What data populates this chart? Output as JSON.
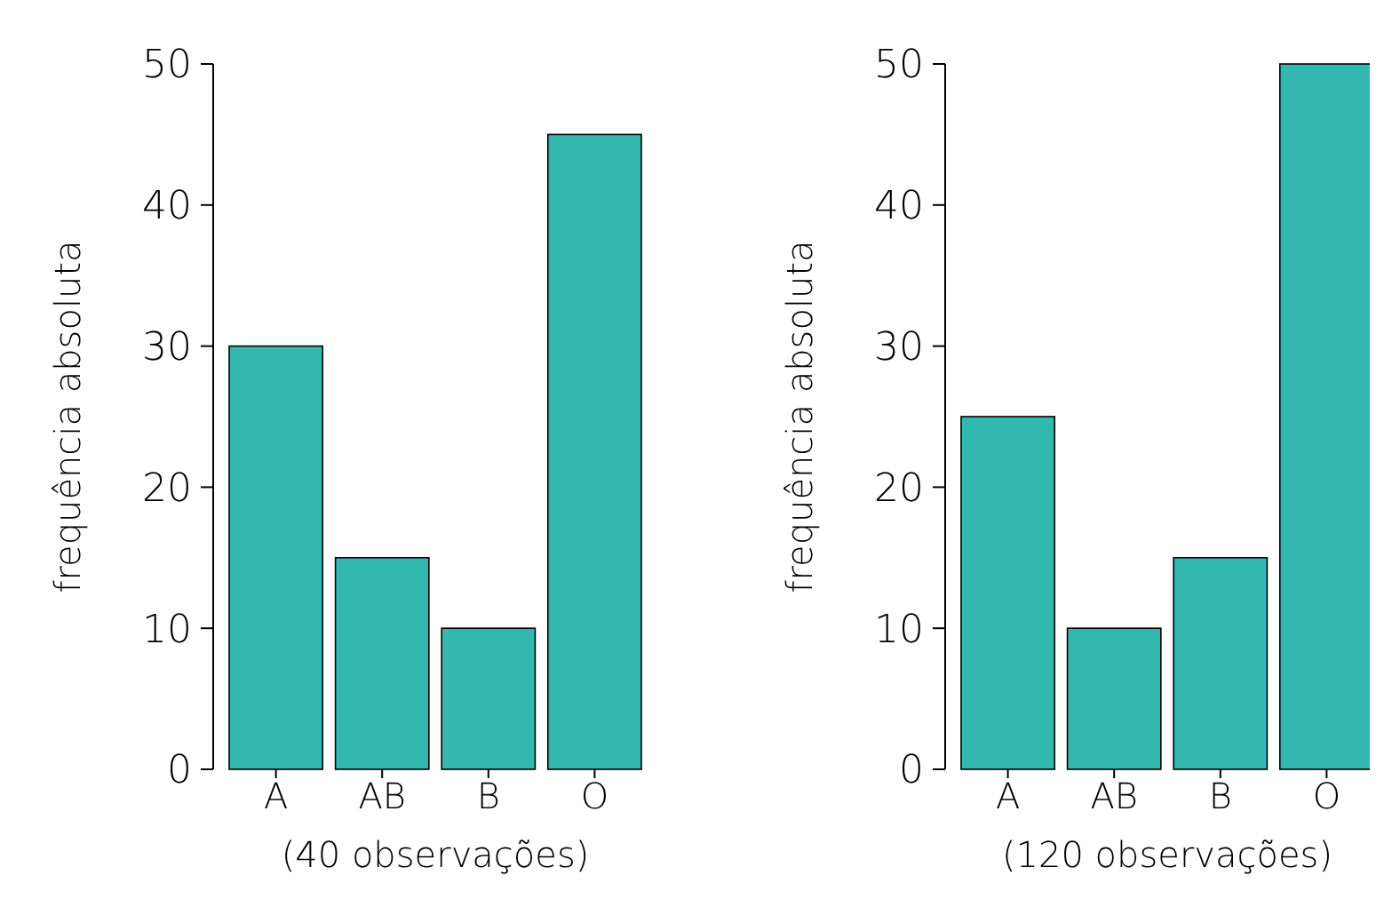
{
  "chart_data": [
    {
      "type": "bar",
      "xlabel": "(40 observações)",
      "ylabel": "frequência absoluta",
      "categories": [
        "A",
        "AB",
        "B",
        "O"
      ],
      "values": [
        30,
        15,
        10,
        45
      ],
      "color": "#33b8b0",
      "ylim": [
        0,
        50
      ],
      "yticks": [
        0,
        10,
        20,
        30,
        40,
        50
      ],
      "grid": false
    },
    {
      "type": "bar",
      "xlabel": "(120 observações)",
      "ylabel": "frequência absoluta",
      "categories": [
        "A",
        "AB",
        "B",
        "O"
      ],
      "values": [
        25,
        10,
        15,
        50
      ],
      "color": "#33b8b0",
      "ylim": [
        0,
        50
      ],
      "yticks": [
        0,
        10,
        20,
        30,
        40,
        50
      ],
      "grid": false
    }
  ]
}
